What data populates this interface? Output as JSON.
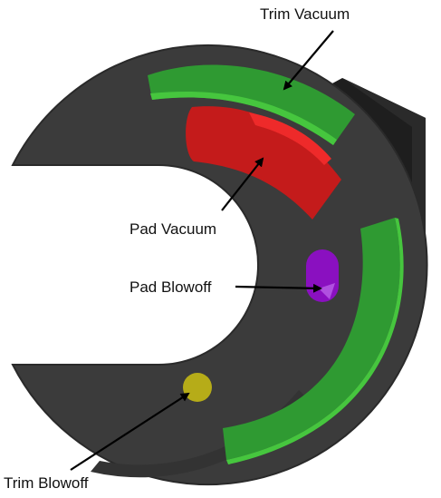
{
  "labels": {
    "trim_vacuum": "Trim Vacuum",
    "pad_vacuum": "Pad Vacuum",
    "pad_blowoff": "Pad Blowoff",
    "trim_blowoff": "Trim Blowoff"
  },
  "colors": {
    "body": "#3b3b3b",
    "body_dark": "#2a2a2a",
    "mount_block": "#232323",
    "trim_vacuum": "#2f9a32",
    "trim_vacuum_highlight": "#44c43c",
    "pad_vacuum": "#c41b1b",
    "pad_vacuum_highlight": "#ee2a2a",
    "pad_blowoff": "#8a10c0",
    "trim_blowoff": "#b6ac18",
    "arrow": "#000000"
  }
}
